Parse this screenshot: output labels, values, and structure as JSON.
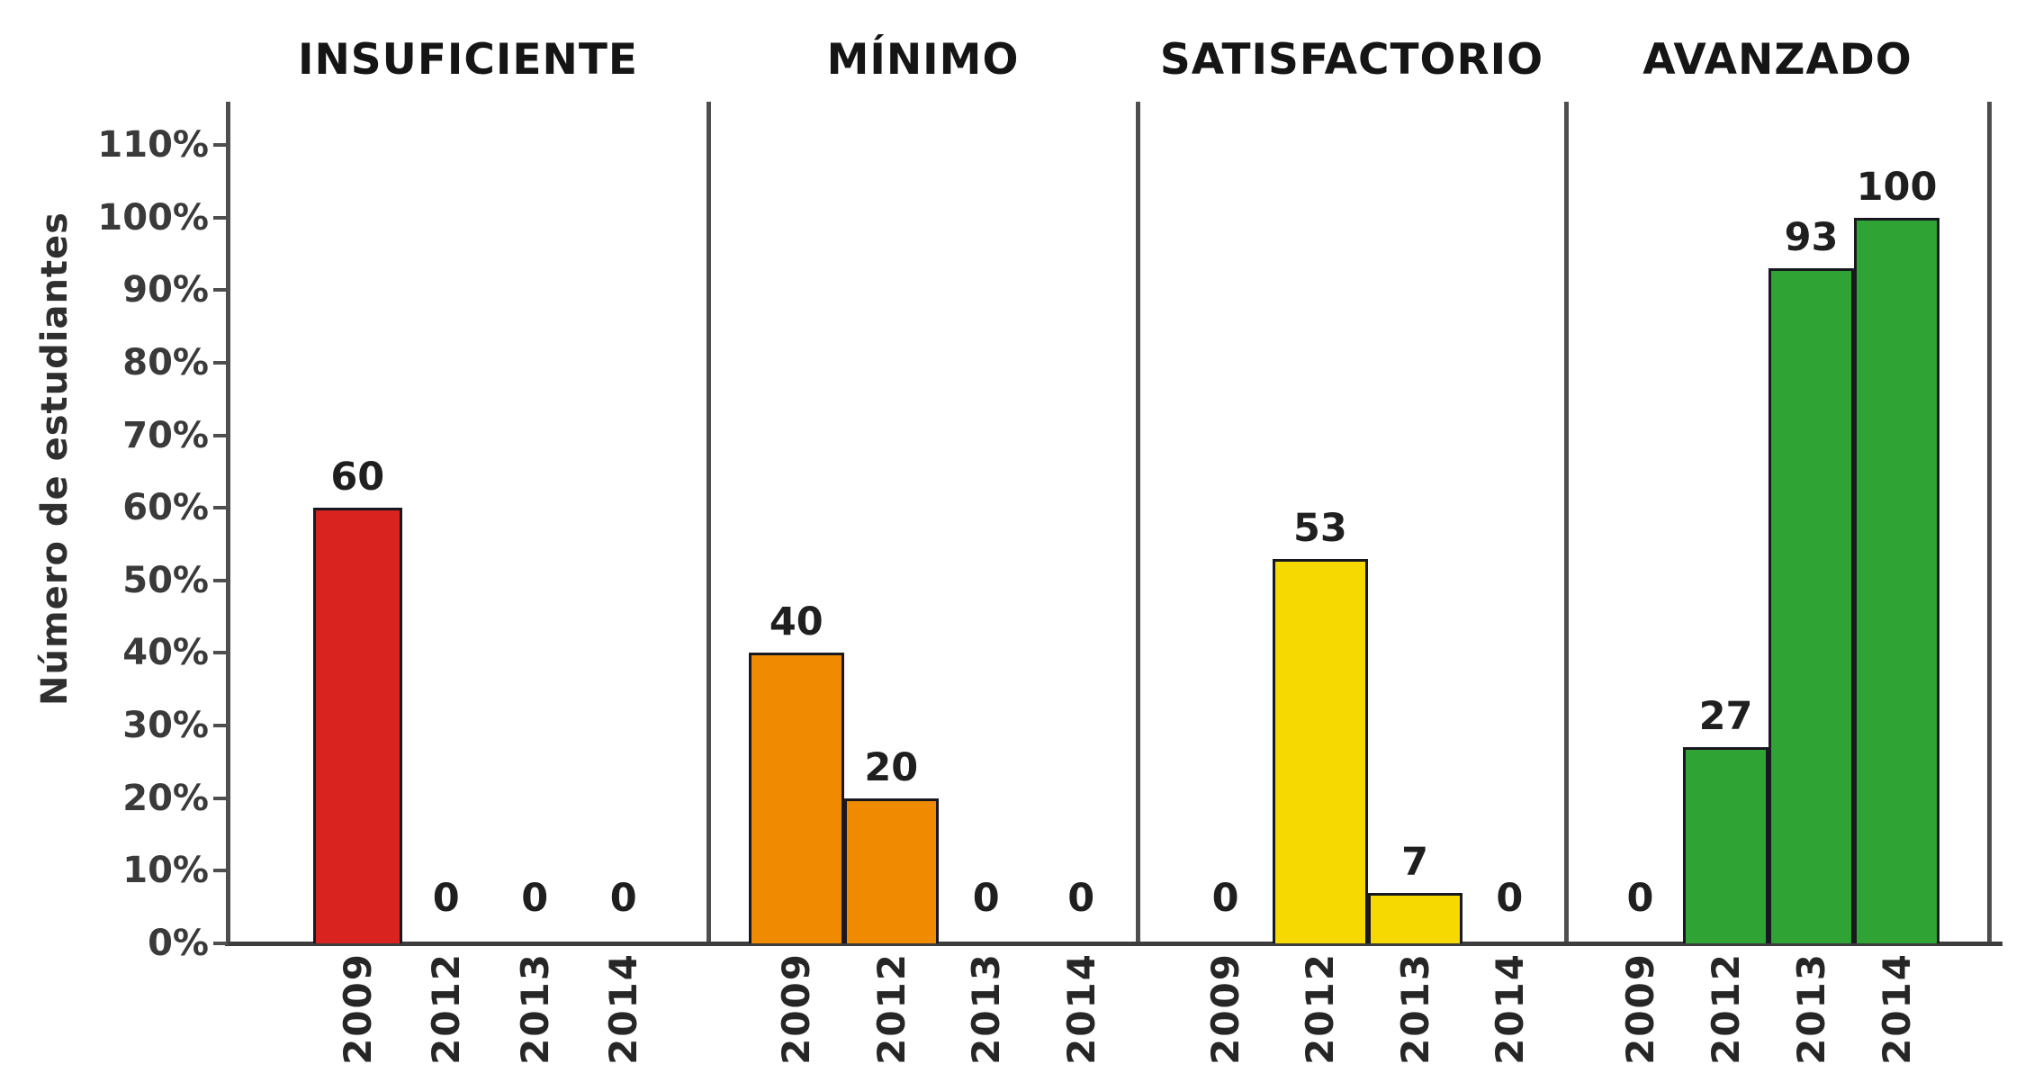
{
  "chart_data": {
    "type": "bar",
    "title": "",
    "ylabel": "Número de estudiantes",
    "ylim": [
      0,
      110
    ],
    "ytick_step": 10,
    "ytick_labels": [
      "0%",
      "10%",
      "20%",
      "30%",
      "40%",
      "50%",
      "60%",
      "70%",
      "80%",
      "90%",
      "100%",
      "110%"
    ],
    "categories": [
      "2009",
      "2012",
      "2013",
      "2014"
    ],
    "grid": false,
    "legend": false,
    "panels": [
      {
        "title": "INSUFICIENTE",
        "color": "#d8231f",
        "values": [
          60,
          0,
          0,
          0
        ]
      },
      {
        "title": "MÍNIMO",
        "color": "#f08a00",
        "values": [
          40,
          20,
          0,
          0
        ]
      },
      {
        "title": "SATISFACTORIO",
        "color": "#f6d900",
        "values": [
          0,
          53,
          7,
          0
        ]
      },
      {
        "title": "AVANZADO",
        "color": "#2fa434",
        "values": [
          0,
          27,
          93,
          100
        ]
      }
    ],
    "colors": {
      "axis_line": "#4e4e4e",
      "baseline": "#3d3d3d",
      "bar_border": "#181820",
      "text": "#262626"
    }
  }
}
